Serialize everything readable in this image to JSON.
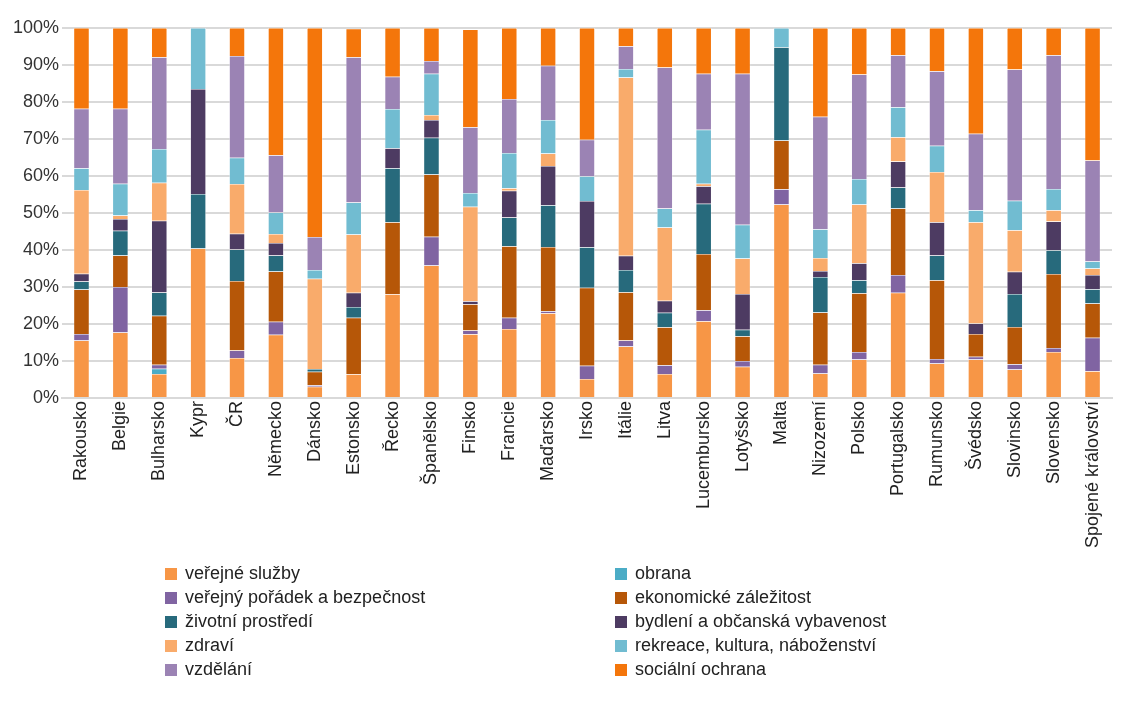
{
  "chart_data": {
    "type": "bar",
    "stacked": true,
    "categories": [
      "Rakousko",
      "Belgie",
      "Bulharsko",
      "Kypr",
      "ČR",
      "Německo",
      "Dánsko",
      "Estonsko",
      "Řecko",
      "Španělsko",
      "Finsko",
      "Francie",
      "Maďarsko",
      "Irsko",
      "Itálie",
      "Litva",
      "Lucembursko",
      "Lotyšsko",
      "Malta",
      "Nizozemí",
      "Polsko",
      "Portugalsko",
      "Rumunsko",
      "Švédsko",
      "Slovinsko",
      "Slovensko",
      "Spojené království"
    ],
    "series": [
      {
        "name": "veřejné služby",
        "color": "#f79646",
        "values": [
          15.5,
          17.7,
          6.5,
          40.4,
          10.8,
          17.1,
          3.0,
          6.4,
          28.0,
          35.8,
          17.2,
          18.6,
          22.9,
          5.1,
          13.9,
          6.5,
          20.7,
          8.4,
          52.3,
          6.6,
          10.4,
          28.4,
          9.3,
          10.4,
          7.7,
          12.4,
          7.2
        ]
      },
      {
        "name": "obrana",
        "color": "#4bacc6",
        "values": [
          0,
          0,
          1.4,
          0,
          0,
          0,
          0,
          0,
          0,
          0,
          0,
          0,
          0,
          0,
          0,
          0,
          0,
          0,
          0,
          0,
          0,
          0,
          0,
          0,
          0,
          0,
          0
        ]
      },
      {
        "name": "veřejný pořádek a bezpečnost",
        "color": "#8064a2",
        "values": [
          1.8,
          12.3,
          1.1,
          0,
          2.0,
          3.5,
          0.4,
          null,
          0,
          7.8,
          1.0,
          3.1,
          0.5,
          3.6,
          1.6,
          2.3,
          3.0,
          1.6,
          4.1,
          2.4,
          2.0,
          4.8,
          1.2,
          0.7,
          1.4,
          1.1,
          9.1
        ]
      },
      {
        "name": "ekonomické záležitost",
        "color": "#b65708",
        "values": [
          12.0,
          8.5,
          13.2,
          0,
          18.8,
          13.6,
          3.7,
          15.3,
          19.5,
          16.8,
          7.1,
          19.3,
          17.4,
          21.1,
          13.1,
          10.3,
          15.2,
          6.7,
          13.2,
          14.1,
          15.9,
          18.0,
          21.3,
          6.2,
          10.1,
          20.0,
          9.2
        ]
      },
      {
        "name": "životní prostředí",
        "color": "#276a7c",
        "values": [
          2.2,
          6.7,
          6.3,
          14.7,
          8.5,
          4.3,
          0.7,
          2.9,
          14.6,
          9.9,
          null,
          7.8,
          11.3,
          10.9,
          6.0,
          3.9,
          13.6,
          1.7,
          25.2,
          9.6,
          3.5,
          5.7,
          6.7,
          0,
          8.9,
          6.4,
          3.9
        ]
      },
      {
        "name": "bydlení a občanská vybavenost",
        "color": "#4d3b62",
        "values": [
          2.1,
          3.2,
          19.4,
          28.4,
          4.3,
          3.4,
          0,
          3.8,
          5.4,
          4.8,
          0.8,
          7.2,
          10.6,
          12.5,
          3.8,
          3.3,
          4.7,
          9.7,
          0,
          1.6,
          4.6,
          7.0,
          9.0,
          2.8,
          6.0,
          7.8,
          3.8
        ]
      },
      {
        "name": "zdraví",
        "color": "#f9ab6b",
        "values": [
          22.6,
          0.9,
          10.3,
          0,
          13.4,
          2.4,
          24.4,
          15.8,
          0,
          1.4,
          25.6,
          0.7,
          3.4,
          0,
          48.2,
          19.8,
          0.7,
          9.6,
          0,
          3.5,
          15.9,
          6.6,
          13.6,
          27.4,
          11.2,
          3.0,
          1.8
        ]
      },
      {
        "name": "rekreace, kultura, náboženství",
        "color": "#71bcd1",
        "values": [
          5.9,
          8.6,
          9.1,
          16.5,
          7.1,
          5.8,
          2.4,
          8.6,
          10.6,
          11.1,
          3.7,
          9.5,
          9.0,
          6.7,
          2.3,
          5.1,
          14.6,
          9.1,
          5.2,
          7.8,
          6.9,
          8.1,
          7.1,
          3.2,
          8.0,
          5.8,
          1.9
        ]
      },
      {
        "name": "vzdělání",
        "color": "#9b83b4",
        "values": [
          16.1,
          20.3,
          24.8,
          0,
          27.5,
          15.5,
          8.9,
          39.3,
          8.7,
          3.5,
          17.8,
          14.6,
          14.7,
          9.9,
          6.2,
          38.1,
          15.1,
          40.8,
          0,
          30.4,
          28.2,
          14.0,
          20.1,
          20.7,
          35.5,
          36.1,
          27.3
        ]
      },
      {
        "name": "sociální  ochrana",
        "color": "#f4760b",
        "values": [
          21.8,
          21.8,
          7.9,
          0,
          7.6,
          34.4,
          56.5,
          7.7,
          13.2,
          8.9,
          26.4,
          19.2,
          10.2,
          30.2,
          4.9,
          10.7,
          12.4,
          12.4,
          0,
          24.0,
          12.6,
          7.4,
          11.7,
          28.6,
          11.2,
          7.4,
          35.8
        ]
      }
    ],
    "ylim": [
      0,
      100
    ],
    "yticks": [
      {
        "value": 0,
        "label": "0%"
      },
      {
        "value": 10,
        "label": "10%"
      },
      {
        "value": 20,
        "label": "20%"
      },
      {
        "value": 30,
        "label": "30%"
      },
      {
        "value": 40,
        "label": "40%"
      },
      {
        "value": 50,
        "label": "50%"
      },
      {
        "value": 60,
        "label": "60%"
      },
      {
        "value": 70,
        "label": "70%"
      },
      {
        "value": 80,
        "label": "80%"
      },
      {
        "value": 90,
        "label": "90%"
      },
      {
        "value": 100,
        "label": "100%"
      }
    ],
    "grid": "y",
    "legend": "bottom"
  }
}
